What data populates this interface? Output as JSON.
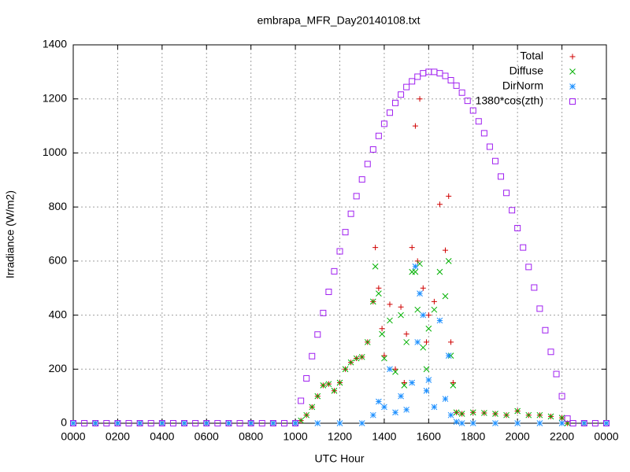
{
  "chart_data": {
    "type": "scatter",
    "title": "embrapa_MFR_Day20140108.txt",
    "xlabel": "UTC Hour",
    "ylabel": "Irradiance (W/m2)",
    "xlim": [
      0,
      24
    ],
    "ylim": [
      0,
      1400
    ],
    "grid": true,
    "legend": "top-right",
    "xticks": [
      {
        "value": 0,
        "label": "0000"
      },
      {
        "value": 2,
        "label": "0200"
      },
      {
        "value": 4,
        "label": "0400"
      },
      {
        "value": 6,
        "label": "0600"
      },
      {
        "value": 8,
        "label": "0800"
      },
      {
        "value": 10,
        "label": "1000"
      },
      {
        "value": 12,
        "label": "1200"
      },
      {
        "value": 14,
        "label": "1400"
      },
      {
        "value": 16,
        "label": "1600"
      },
      {
        "value": 18,
        "label": "1800"
      },
      {
        "value": 20,
        "label": "2000"
      },
      {
        "value": 22,
        "label": "2200"
      },
      {
        "value": 24,
        "label": "0000"
      }
    ],
    "yticks": [
      0,
      200,
      400,
      600,
      800,
      1000,
      1200,
      1400
    ],
    "series": [
      {
        "name": "Total",
        "color": "#d00000",
        "marker": "plus",
        "x": [
          0,
          1,
          2,
          3,
          4,
          5,
          6,
          7,
          8,
          9,
          10,
          10.25,
          10.5,
          10.75,
          11,
          11.25,
          11.5,
          11.75,
          12,
          12.25,
          12.5,
          12.75,
          13,
          13.25,
          13.5,
          13.6,
          13.75,
          13.9,
          14,
          14.25,
          14.5,
          14.75,
          14.9,
          15,
          15.25,
          15.4,
          15.5,
          15.6,
          15.75,
          15.9,
          16,
          16.25,
          16.5,
          16.75,
          16.9,
          17,
          17.1,
          17.25,
          17.5,
          18,
          18.5,
          19,
          19.5,
          20,
          20.5,
          21,
          21.5,
          22,
          22.25,
          23,
          24
        ],
        "values": [
          0,
          0,
          0,
          0,
          0,
          0,
          0,
          0,
          0,
          0,
          0,
          10,
          30,
          60,
          100,
          140,
          145,
          120,
          150,
          200,
          225,
          240,
          245,
          300,
          450,
          650,
          500,
          350,
          250,
          440,
          200,
          430,
          150,
          330,
          650,
          1100,
          600,
          1200,
          500,
          300,
          400,
          450,
          810,
          640,
          840,
          300,
          150,
          40,
          35,
          40,
          38,
          35,
          30,
          45,
          30,
          30,
          25,
          20,
          0,
          0,
          0
        ]
      },
      {
        "name": "Diffuse",
        "color": "#00b000",
        "marker": "cross",
        "x": [
          0,
          1,
          2,
          3,
          4,
          5,
          6,
          7,
          8,
          9,
          10,
          10.25,
          10.5,
          10.75,
          11,
          11.25,
          11.5,
          11.75,
          12,
          12.25,
          12.5,
          12.75,
          13,
          13.25,
          13.5,
          13.6,
          13.75,
          13.9,
          14,
          14.25,
          14.5,
          14.75,
          14.9,
          15,
          15.25,
          15.4,
          15.5,
          15.6,
          15.75,
          15.9,
          16,
          16.25,
          16.5,
          16.75,
          16.9,
          17,
          17.1,
          17.25,
          17.5,
          18,
          18.5,
          19,
          19.5,
          20,
          20.5,
          21,
          21.5,
          22,
          22.25,
          23,
          24
        ],
        "values": [
          0,
          0,
          0,
          0,
          0,
          0,
          0,
          0,
          0,
          0,
          0,
          10,
          30,
          60,
          100,
          140,
          145,
          120,
          150,
          200,
          225,
          240,
          245,
          300,
          450,
          580,
          480,
          330,
          240,
          380,
          190,
          400,
          140,
          300,
          560,
          560,
          420,
          590,
          280,
          200,
          350,
          420,
          560,
          470,
          600,
          250,
          140,
          40,
          35,
          40,
          38,
          35,
          30,
          45,
          30,
          30,
          25,
          20,
          0,
          0,
          0
        ]
      },
      {
        "name": "DirNorm",
        "color": "#1e90ff",
        "marker": "star",
        "x": [
          0,
          1,
          2,
          3,
          4,
          5,
          6,
          7,
          8,
          9,
          10,
          11,
          12,
          13,
          13.5,
          13.75,
          14,
          14.25,
          14.5,
          14.75,
          15,
          15.25,
          15.4,
          15.5,
          15.6,
          15.75,
          15.9,
          16,
          16.25,
          16.5,
          16.75,
          16.9,
          17,
          17.25,
          17.5,
          18,
          19,
          20,
          21,
          22,
          23,
          24
        ],
        "values": [
          0,
          0,
          0,
          0,
          0,
          0,
          0,
          0,
          0,
          0,
          0,
          0,
          0,
          0,
          30,
          80,
          60,
          200,
          40,
          100,
          50,
          150,
          580,
          300,
          480,
          400,
          120,
          160,
          60,
          380,
          90,
          250,
          30,
          5,
          0,
          0,
          0,
          0,
          0,
          0,
          0,
          0
        ]
      },
      {
        "name": "1380*cos(zth)",
        "color": "#a020f0",
        "marker": "square",
        "x": [
          0,
          0.5,
          1,
          1.5,
          2,
          2.5,
          3,
          3.5,
          4,
          4.5,
          5,
          5.5,
          6,
          6.5,
          7,
          7.5,
          8,
          8.5,
          9,
          9.5,
          10,
          10.25,
          10.5,
          10.75,
          11,
          11.25,
          11.5,
          11.75,
          12,
          12.25,
          12.5,
          12.75,
          13,
          13.25,
          13.5,
          13.75,
          14,
          14.25,
          14.5,
          14.75,
          15,
          15.25,
          15.5,
          15.75,
          16,
          16.25,
          16.5,
          16.75,
          17,
          17.25,
          17.5,
          17.75,
          18,
          18.25,
          18.5,
          18.75,
          19,
          19.25,
          19.5,
          19.75,
          20,
          20.25,
          20.5,
          20.75,
          21,
          21.25,
          21.5,
          21.75,
          22,
          22.25,
          22.5,
          23,
          23.5,
          24
        ],
        "values": [
          0,
          0,
          0,
          0,
          0,
          0,
          0,
          0,
          0,
          0,
          0,
          0,
          0,
          0,
          0,
          0,
          0,
          0,
          0,
          0,
          0,
          83,
          166,
          248,
          328,
          408,
          486,
          562,
          636,
          707,
          775,
          840,
          902,
          959,
          1013,
          1063,
          1108,
          1149,
          1185,
          1216,
          1244,
          1265,
          1282,
          1295,
          1300,
          1300,
          1295,
          1285,
          1269,
          1249,
          1223,
          1193,
          1157,
          1117,
          1073,
          1023,
          970,
          913,
          852,
          788,
          722,
          650,
          578,
          502,
          424,
          344,
          264,
          182,
          100,
          17,
          0,
          0,
          0,
          0
        ]
      }
    ]
  }
}
